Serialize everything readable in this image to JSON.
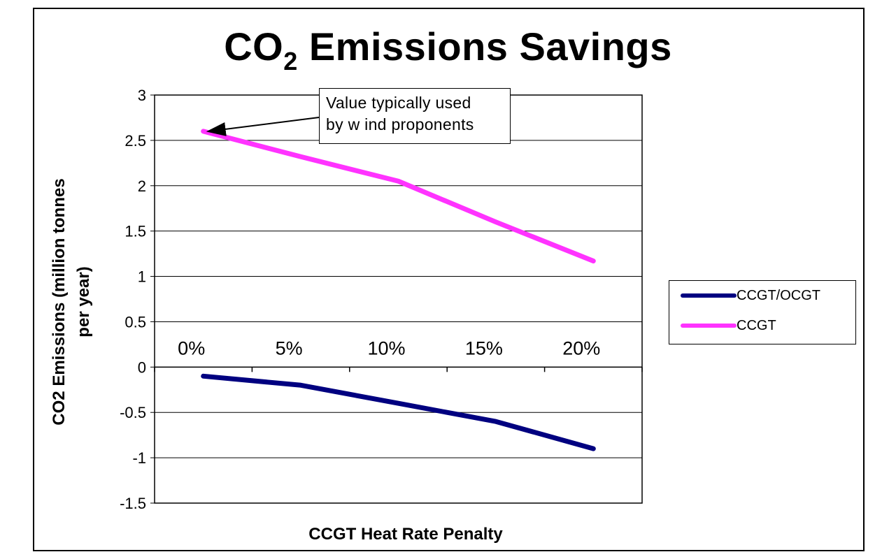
{
  "chart_data": {
    "type": "line",
    "title": "CO",
    "title_subscript": "2",
    "title_rest": " Emissions Savings",
    "xlabel": "CCGT Heat Rate Penalty",
    "ylabel": "CO2 Emissions (million tonnes per year)",
    "ylabel_lines": [
      "CO2 Emissions (million tonnes",
      "per year)"
    ],
    "categories": [
      "0%",
      "5%",
      "10%",
      "15%",
      "20%"
    ],
    "ylim": [
      -1.5,
      3
    ],
    "yticks": [
      "3",
      "2.5",
      "2",
      "1.5",
      "1",
      "0.5",
      "0",
      "-0.5",
      "-1",
      "-1.5"
    ],
    "grid": true,
    "legend_position": "right",
    "series": [
      {
        "name": "CCGT/OCGT",
        "color": "#000080",
        "values": [
          -0.1,
          -0.2,
          -0.4,
          -0.6,
          -0.9
        ]
      },
      {
        "name": "CCGT",
        "color": "#ff33ff",
        "values": [
          2.6,
          2.32,
          2.05,
          1.6,
          1.17
        ]
      }
    ],
    "annotation": "Value typically used\nby w ind proponents"
  }
}
